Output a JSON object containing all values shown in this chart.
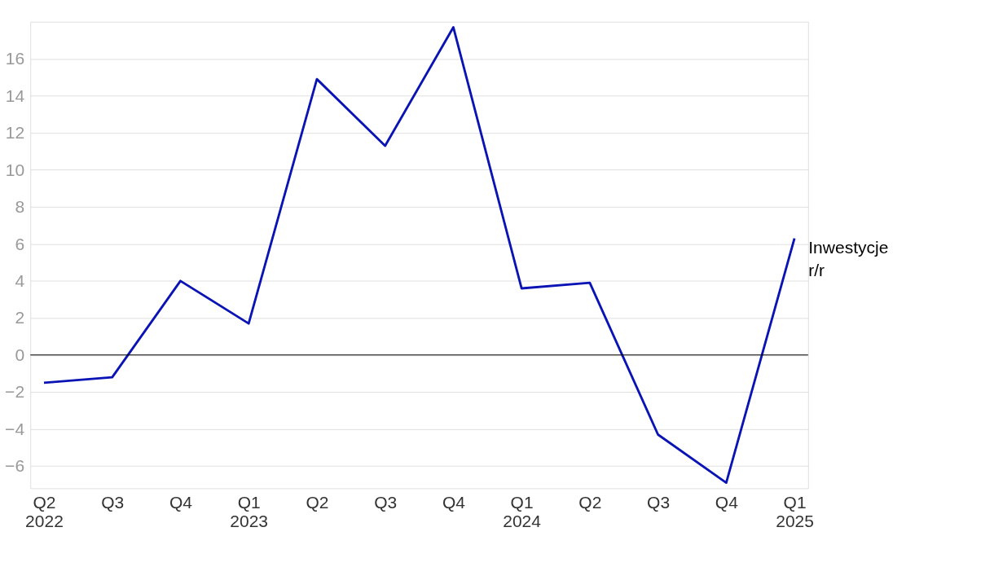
{
  "chart_data": {
    "type": "line",
    "categories": [
      "Q2\n2022",
      "Q3",
      "Q4",
      "Q1\n2023",
      "Q2",
      "Q3",
      "Q4",
      "Q1\n2024",
      "Q2",
      "Q3",
      "Q4",
      "Q1\n2025"
    ],
    "series": [
      {
        "name": "Inwestycje r/r",
        "color": "#0a14b4",
        "values": [
          -1.5,
          -1.2,
          4.0,
          1.7,
          14.9,
          11.3,
          17.7,
          3.6,
          3.9,
          -4.3,
          -6.9,
          6.3
        ]
      }
    ],
    "ylim": [
      -7.2,
      18
    ],
    "yticks": [
      -6,
      -4,
      -2,
      0,
      2,
      4,
      6,
      8,
      10,
      12,
      14,
      16
    ],
    "ref_lines": [
      {
        "axis": "y",
        "value": 0,
        "label": null,
        "color": "#000000"
      }
    ],
    "grid": "y",
    "marker": "none",
    "line_style": "solid"
  }
}
